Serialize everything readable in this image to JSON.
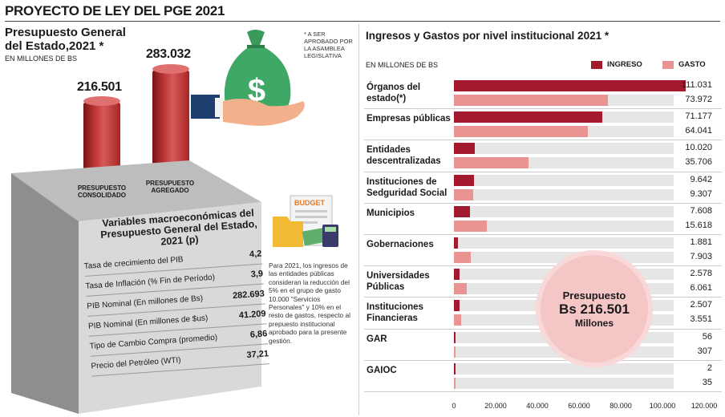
{
  "header": {
    "title": "PROYECTO DE LEY DEL PGE 2021"
  },
  "left": {
    "title": "Presupuesto General del Estado,2021 *",
    "unit": "EN MILLONES DE BS",
    "note": "* A SER APROBADO POR LA ASAMBLEA LEGISLATIVA",
    "columns": [
      {
        "value": "216.501",
        "label": "PRESUPUESTO CONSOLIDADO"
      },
      {
        "value": "283.032",
        "label": "PRESUPUESTO AGREGADO"
      }
    ],
    "macro": {
      "title": "Variables macroeconómicas del Presupuesto General del Estado, 2021 (p)",
      "rows": [
        {
          "label": "Tasa de crecimiento del PIB",
          "value": "4,2"
        },
        {
          "label": "Tasa de Inflación (% Fin de Período)",
          "value": "3,9"
        },
        {
          "label": "PIB Nominal (En millones de Bs)",
          "value": "282.693"
        },
        {
          "label": "PIB Nominal (En millones de $us)",
          "value": "41.209"
        },
        {
          "label": "Tipo de Cambio Compra (promedio)",
          "value": "6,86"
        },
        {
          "label": "Precio del Petróleo (WTI)",
          "value": "37,21"
        }
      ]
    },
    "side_text": "Para 2021, los ingresos de las entidades públicas consideran la reducción del 5% en el grupo de gasto 10.000 \"Servicios Personales\" y 10% en el resto de gastos, respecto al prepuesto institucional aprobado para la presente gestión.",
    "budget_label": "BUDGET",
    "money_symbol": "$"
  },
  "right": {
    "title": "Ingresos y Gastos por nivel institucional 2021 *",
    "unit": "EN MILLONES DE BS",
    "callout": {
      "line1": "Presupuesto",
      "line2": "Bs 216.501",
      "line3": "Millones"
    }
  },
  "colors": {
    "ingreso": "#a3192d",
    "gasto": "#e99393",
    "track": "#e6e6e6"
  },
  "chart_data": {
    "type": "bar",
    "orientation": "horizontal",
    "title": "Ingresos y Gastos por nivel institucional 2021 *",
    "xlim": [
      0,
      120000
    ],
    "x_ticks": [
      "0",
      "20.000",
      "40.000",
      "60.000",
      "80.000",
      "100.000",
      "120.000"
    ],
    "x_tick_values": [
      0,
      20000,
      40000,
      60000,
      80000,
      100000,
      120000
    ],
    "legend_position": "top-right",
    "categories": [
      "Órganos del estado(*)",
      "Empresas públicas",
      "Entidades descentralizadas",
      "Instituciones de Sedguridad Social",
      "Municipios",
      "Gobernaciones",
      "Universidades Públicas",
      "Instituciones Financieras",
      "GAR",
      "GAIOC"
    ],
    "series": [
      {
        "name": "INGRESO",
        "values": [
          111031,
          71177,
          10020,
          9642,
          7608,
          1881,
          2578,
          2507,
          56,
          2
        ],
        "labels": [
          "111.031",
          "71.177",
          "10.020",
          "9.642",
          "7.608",
          "1.881",
          "2.578",
          "2.507",
          "56",
          "2"
        ]
      },
      {
        "name": "GASTO",
        "values": [
          73972,
          64041,
          35706,
          9307,
          15618,
          7903,
          6061,
          3551,
          307,
          35
        ],
        "labels": [
          "73.972",
          "64.041",
          "35.706",
          "9.307",
          "15.618",
          "7.903",
          "6.061",
          "3.551",
          "307",
          "35"
        ]
      }
    ]
  }
}
